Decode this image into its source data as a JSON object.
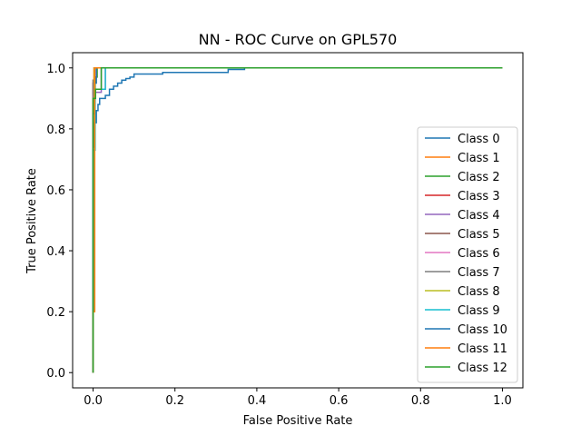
{
  "chart_data": {
    "type": "line",
    "title": "NN - ROC Curve on GPL570",
    "xlabel": "False Positive Rate",
    "ylabel": "True Positive Rate",
    "xlim": [
      -0.05,
      1.05
    ],
    "ylim": [
      -0.05,
      1.05
    ],
    "xticks": [
      "0.0",
      "0.2",
      "0.4",
      "0.6",
      "0.8",
      "1.0"
    ],
    "yticks": [
      "0.0",
      "0.2",
      "0.4",
      "0.6",
      "0.8",
      "1.0"
    ],
    "grid": false,
    "legend_position": "lower-right",
    "series": [
      {
        "name": "Class 0",
        "color": "#1f77b4",
        "x": [
          0,
          0,
          0.004,
          0.004,
          0.008,
          0.008,
          0.012,
          0.012,
          0.016,
          0.016,
          0.02,
          0.02,
          0.03,
          0.03,
          0.04,
          0.04,
          0.05,
          0.05,
          0.06,
          0.06,
          0.07,
          0.07,
          0.08,
          0.08,
          0.09,
          0.09,
          0.1,
          0.1,
          0.17,
          0.17,
          0.33,
          0.33,
          0.37,
          0.37,
          1.0
        ],
        "y": [
          0,
          0.74,
          0.74,
          0.82,
          0.82,
          0.86,
          0.86,
          0.88,
          0.88,
          0.9,
          0.9,
          0.9,
          0.9,
          0.91,
          0.91,
          0.93,
          0.93,
          0.94,
          0.94,
          0.95,
          0.95,
          0.96,
          0.96,
          0.965,
          0.965,
          0.97,
          0.97,
          0.98,
          0.98,
          0.985,
          0.985,
          0.995,
          0.995,
          1.0,
          1.0
        ]
      },
      {
        "name": "Class 1",
        "color": "#ff7f0e",
        "x": [
          0,
          0,
          0.002,
          0.002,
          1.0
        ],
        "y": [
          0,
          0.96,
          0.96,
          1.0,
          1.0
        ]
      },
      {
        "name": "Class 2",
        "color": "#2ca02c",
        "x": [
          0,
          0,
          0.005,
          0.005,
          0.01,
          0.01,
          1.0
        ],
        "y": [
          0,
          0.9,
          0.9,
          0.97,
          0.97,
          1.0,
          1.0
        ]
      },
      {
        "name": "Class 3",
        "color": "#d62728",
        "x": [
          0,
          0,
          0.004,
          0.004,
          0.008,
          0.008,
          1.0
        ],
        "y": [
          0,
          0.95,
          0.95,
          0.97,
          0.97,
          1.0,
          1.0
        ]
      },
      {
        "name": "Class 4",
        "color": "#9467bd",
        "x": [
          0,
          0,
          0.02,
          0.02,
          1.0
        ],
        "y": [
          0,
          0.92,
          0.92,
          1.0,
          1.0
        ]
      },
      {
        "name": "Class 5",
        "color": "#8c564b",
        "x": [
          0,
          0,
          0.003,
          0.003,
          1.0
        ],
        "y": [
          0,
          0.95,
          0.95,
          1.0,
          1.0
        ]
      },
      {
        "name": "Class 6",
        "color": "#e377c2",
        "x": [
          0,
          0,
          0.006,
          0.006,
          0.03,
          0.03,
          1.0
        ],
        "y": [
          0,
          0.91,
          0.91,
          0.93,
          0.93,
          1.0,
          1.0
        ]
      },
      {
        "name": "Class 7",
        "color": "#7f7f7f",
        "x": [
          0,
          0,
          0.004,
          0.004,
          1.0
        ],
        "y": [
          0,
          0.96,
          0.96,
          1.0,
          1.0
        ]
      },
      {
        "name": "Class 8",
        "color": "#bcbd22",
        "x": [
          0,
          0,
          0.003,
          0.003,
          1.0
        ],
        "y": [
          0,
          0.9,
          0.9,
          1.0,
          1.0
        ]
      },
      {
        "name": "Class 9",
        "color": "#17becf",
        "x": [
          0,
          0,
          0.005,
          0.005,
          0.03,
          0.03,
          1.0
        ],
        "y": [
          0,
          0.73,
          0.73,
          0.93,
          0.93,
          1.0,
          1.0
        ]
      },
      {
        "name": "Class 10",
        "color": "#1f77b4",
        "x": [
          0,
          0,
          0.004,
          0.004,
          0.008,
          0.008,
          1.0
        ],
        "y": [
          0,
          0.85,
          0.85,
          0.95,
          0.95,
          1.0,
          1.0
        ]
      },
      {
        "name": "Class 11",
        "color": "#ff7f0e",
        "x": [
          0,
          0,
          0.004,
          0.004,
          1.0
        ],
        "y": [
          0,
          0.2,
          0.2,
          1.0,
          1.0
        ]
      },
      {
        "name": "Class 12",
        "color": "#2ca02c",
        "x": [
          0,
          0,
          0.006,
          0.006,
          0.02,
          0.02,
          1.0
        ],
        "y": [
          0,
          0.9,
          0.9,
          0.93,
          0.93,
          1.0,
          1.0
        ]
      }
    ]
  }
}
